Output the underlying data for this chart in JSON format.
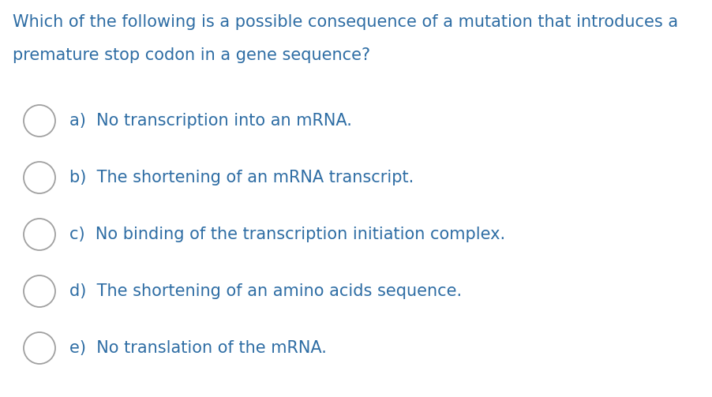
{
  "background_color": "#ffffff",
  "text_color": "#2e6da4",
  "circle_color": "#a0a0a0",
  "question_line1": "Which of the following is a possible consequence of a mutation that introduces a",
  "question_line2": "premature stop codon in a gene sequence?",
  "options": [
    "a)  No transcription into an mRNA.",
    "b)  The shortening of an mRNA transcript.",
    "c)  No binding of the transcription initiation complex.",
    "d)  The shortening of an amino acids sequence.",
    "e)  No translation of the mRNA."
  ],
  "question_fontsize": 15.0,
  "option_fontsize": 15.0,
  "figsize": [
    9.02,
    5.03
  ],
  "dpi": 100
}
